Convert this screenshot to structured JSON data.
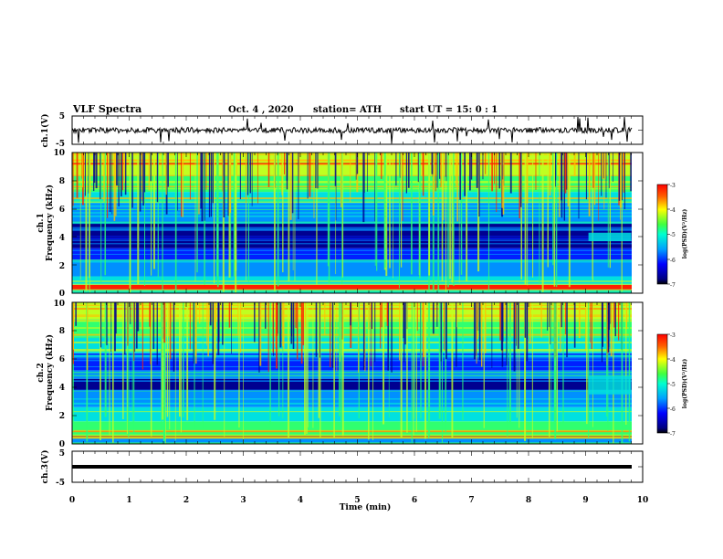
{
  "header": {
    "title": "VLF Spectra",
    "date": "Oct. 4  , 2020",
    "station": "station= ATH",
    "start": "start  UT =   15: 0  : 1"
  },
  "chart_data": {
    "type": "heatmap",
    "xlabel": "Time  (min)",
    "x_ticks": [
      "0",
      "1",
      "2",
      "3",
      "4",
      "5",
      "6",
      "7",
      "8",
      "9",
      "10"
    ],
    "xlim": [
      0,
      10
    ],
    "panels": [
      {
        "id": "ch1v",
        "ylabel": "ch.1(V)",
        "ylim": [
          -5,
          5
        ],
        "y_ticks": [
          "5",
          "-5"
        ],
        "trace": "noisy waveform near 0 V with spikes"
      },
      {
        "id": "ch1",
        "ylabel_line1": "ch.1",
        "ylabel_line2": "Frequency  (kHz)",
        "ylim": [
          0,
          10
        ],
        "y_ticks": [
          "0",
          "2",
          "4",
          "6",
          "8",
          "10"
        ]
      },
      {
        "id": "ch2",
        "ylabel_line1": "ch.2",
        "ylabel_line2": "Frequency  (kHz)",
        "ylim": [
          0,
          10
        ],
        "y_ticks": [
          "0",
          "2",
          "4",
          "6",
          "8",
          "10"
        ]
      },
      {
        "id": "ch3v",
        "ylabel": "ch.3(V)",
        "ylim": [
          -5,
          5
        ],
        "y_ticks": [
          "5",
          "-5"
        ],
        "trace": "flat line at about 0 V"
      }
    ],
    "colorbar": {
      "label": "log(PSD)(V²/Hz)",
      "range": [
        -7,
        -3
      ],
      "ticks": [
        "-3",
        "-4",
        "-5",
        "-6",
        "-7"
      ],
      "colormap": [
        "#000033",
        "#0000c0",
        "#0060ff",
        "#00d0ff",
        "#00ff80",
        "#c0ff00",
        "#ffd000",
        "#ff4000",
        "#ff0000"
      ]
    }
  }
}
